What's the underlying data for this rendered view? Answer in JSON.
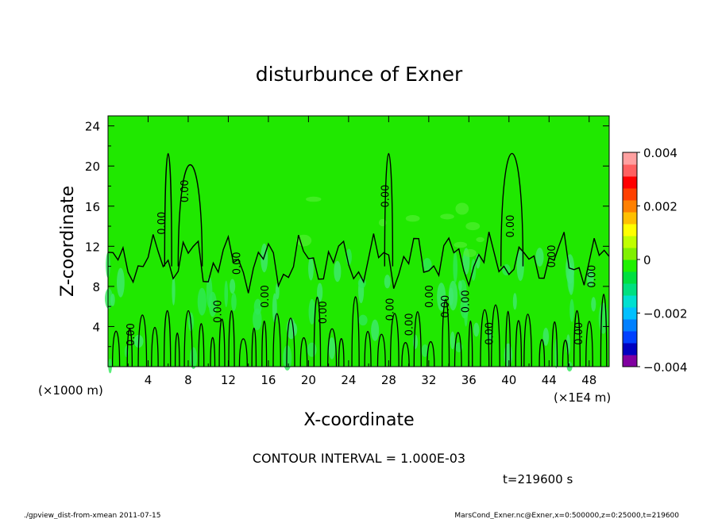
{
  "chart_data": {
    "type": "heatmap",
    "title": "disturbunce of Exner",
    "xlabel": "X-coordinate",
    "ylabel": "Z-coordinate",
    "x_unit_left": "(×1000 m)",
    "x_unit_right": "(×1E4 m)",
    "xlim": [
      0,
      50
    ],
    "ylim": [
      0,
      25
    ],
    "x_ticks": [
      "4",
      "8",
      "12",
      "16",
      "20",
      "24",
      "28",
      "32",
      "36",
      "40",
      "44",
      "48"
    ],
    "y_ticks": [
      "4",
      "8",
      "12",
      "16",
      "20",
      "24"
    ],
    "colorbar": {
      "range": [
        -0.004,
        0.004
      ],
      "tick_labels": [
        "0.004",
        "0.002",
        "0",
        "−0.002",
        "−0.004"
      ],
      "colors": [
        "#8000a0",
        "#0000c0",
        "#0040ff",
        "#0080ff",
        "#00c0ff",
        "#00e0d0",
        "#00e080",
        "#00e040",
        "#20f000",
        "#80f000",
        "#c0ff00",
        "#ffff00",
        "#ffc000",
        "#ff8000",
        "#ff4000",
        "#ff0000",
        "#ff6060",
        "#ffa0a0"
      ]
    },
    "contour_label": "0.00",
    "contour_interval": "CONTOUR INTERVAL = 1.000E-03",
    "time": "t=219600 s"
  },
  "footer": {
    "left": "./gpview_dist-from-xmean  2011-07-15",
    "right": "MarsCond_Exner.nc@Exner,x=0:500000,z=0:25000,t=219600"
  },
  "colors": {
    "background": "#20e800",
    "contour": "#000000"
  }
}
